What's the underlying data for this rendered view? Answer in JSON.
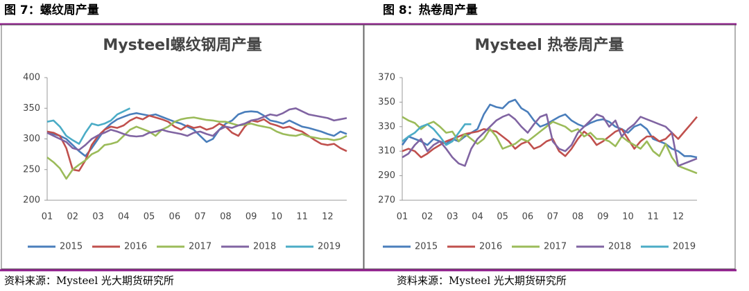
{
  "figures": [
    {
      "heading": "图 7：螺纹周产量",
      "source": "资料来源：Mysteel 光大期货研究所"
    },
    {
      "heading": "图 8：热卷周产量",
      "source": "资料来源：Mysteel 光大期货研究所"
    }
  ],
  "chart_data": [
    {
      "type": "line",
      "title": "Mysteel螺纹钢周产量",
      "categories": [
        "01",
        null,
        null,
        null,
        "02",
        null,
        null,
        null,
        "03",
        null,
        null,
        null,
        "04",
        null,
        null,
        null,
        "05",
        null,
        null,
        null,
        "06",
        null,
        null,
        null,
        "07",
        null,
        null,
        null,
        "08",
        null,
        null,
        null,
        "09",
        null,
        null,
        null,
        "10",
        null,
        null,
        null,
        "11",
        null,
        null,
        null,
        "12",
        null,
        null,
        null
      ],
      "ylim": [
        200,
        400
      ],
      "yticks": [
        200,
        250,
        300,
        350,
        400
      ],
      "series": [
        {
          "name": "2015",
          "color": "#4a7ebb",
          "values": [
            310,
            308,
            305,
            300,
            290,
            280,
            272,
            285,
            300,
            315,
            325,
            332,
            336,
            340,
            342,
            340,
            338,
            340,
            336,
            332,
            328,
            325,
            320,
            315,
            305,
            295,
            300,
            315,
            325,
            330,
            340,
            344,
            345,
            344,
            338,
            330,
            328,
            325,
            330,
            325,
            320,
            318,
            315,
            312,
            308,
            305,
            312,
            308
          ]
        },
        {
          "name": "2016",
          "color": "#c0504d",
          "values": [
            312,
            310,
            305,
            285,
            250,
            248,
            265,
            290,
            305,
            315,
            320,
            318,
            322,
            330,
            335,
            332,
            338,
            335,
            332,
            328,
            320,
            315,
            322,
            318,
            320,
            315,
            318,
            325,
            320,
            310,
            305,
            320,
            330,
            328,
            332,
            325,
            322,
            318,
            320,
            315,
            312,
            305,
            298,
            292,
            290,
            292,
            285,
            280
          ]
        },
        {
          "name": "2017",
          "color": "#9bbb59",
          "values": [
            270,
            262,
            252,
            235,
            250,
            258,
            265,
            275,
            280,
            290,
            292,
            295,
            305,
            315,
            320,
            316,
            312,
            305,
            315,
            320,
            328,
            332,
            334,
            335,
            333,
            331,
            330,
            328,
            328,
            325,
            322,
            323,
            325,
            322,
            320,
            318,
            312,
            308,
            306,
            305,
            308,
            304,
            302,
            300,
            300,
            298,
            300,
            305
          ]
        },
        {
          "name": "2018",
          "color": "#8064a2",
          "values": [
            310,
            305,
            300,
            295,
            285,
            282,
            290,
            300,
            306,
            310,
            315,
            312,
            308,
            305,
            304,
            305,
            310,
            312,
            315,
            312,
            310,
            308,
            305,
            310,
            312,
            308,
            305,
            315,
            320,
            318,
            322,
            325,
            330,
            332,
            336,
            340,
            338,
            342,
            348,
            350,
            345,
            340,
            338,
            336,
            334,
            330,
            332,
            334
          ]
        },
        {
          "name": "2019",
          "color": "#4bacc6",
          "values": [
            328,
            330,
            320,
            305,
            298,
            292,
            310,
            325,
            322,
            325,
            330,
            340,
            345,
            350,
            null,
            null,
            null,
            null,
            null,
            null,
            null,
            null,
            null,
            null,
            null,
            null,
            null,
            null,
            null,
            null,
            null,
            null,
            null,
            null,
            null,
            null,
            null,
            null,
            null,
            null,
            null,
            null,
            null,
            null,
            null,
            null,
            null,
            null
          ]
        }
      ]
    },
    {
      "type": "line",
      "title": "Mysteel 热卷周产量",
      "categories": [
        "01",
        null,
        null,
        null,
        "02",
        null,
        null,
        null,
        "03",
        null,
        null,
        null,
        "04",
        null,
        null,
        null,
        "05",
        null,
        null,
        null,
        "06",
        null,
        null,
        null,
        "07",
        null,
        null,
        null,
        "08",
        null,
        null,
        null,
        "09",
        null,
        null,
        null,
        "10",
        null,
        null,
        null,
        "11",
        null,
        null,
        null,
        "12",
        null,
        null,
        null
      ],
      "ylim": [
        270,
        370
      ],
      "yticks": [
        270,
        290,
        310,
        330,
        350,
        370
      ],
      "series": [
        {
          "name": "2015",
          "color": "#4a7ebb",
          "values": [
            315,
            322,
            320,
            318,
            315,
            320,
            318,
            316,
            320,
            318,
            322,
            325,
            328,
            340,
            348,
            346,
            345,
            350,
            352,
            345,
            342,
            335,
            330,
            332,
            335,
            338,
            340,
            335,
            332,
            330,
            333,
            335,
            336,
            334,
            330,
            328,
            325,
            330,
            332,
            328,
            320,
            318,
            316,
            312,
            310,
            306,
            306,
            305
          ]
        },
        {
          "name": "2016",
          "color": "#c0504d",
          "values": [
            310,
            312,
            310,
            305,
            308,
            312,
            315,
            318,
            320,
            322,
            324,
            325,
            326,
            328,
            327,
            326,
            322,
            318,
            312,
            316,
            318,
            312,
            314,
            318,
            320,
            310,
            306,
            312,
            320,
            326,
            322,
            315,
            318,
            322,
            326,
            328,
            320,
            312,
            318,
            322,
            322,
            318,
            320,
            325,
            320,
            326,
            332,
            338
          ]
        },
        {
          "name": "2017",
          "color": "#9bbb59",
          "values": [
            338,
            335,
            333,
            328,
            332,
            334,
            330,
            325,
            326,
            318,
            324,
            320,
            316,
            320,
            328,
            322,
            312,
            314,
            316,
            320,
            318,
            322,
            326,
            330,
            334,
            332,
            330,
            326,
            328,
            322,
            325,
            320,
            320,
            318,
            314,
            322,
            318,
            315,
            312,
            318,
            310,
            306,
            316,
            305,
            298,
            296,
            294,
            292
          ]
        },
        {
          "name": "2018",
          "color": "#8064a2",
          "values": [
            305,
            308,
            315,
            320,
            310,
            315,
            318,
            312,
            305,
            300,
            298,
            312,
            320,
            325,
            330,
            335,
            338,
            340,
            336,
            330,
            325,
            332,
            338,
            340,
            318,
            312,
            310,
            315,
            325,
            330,
            335,
            340,
            338,
            330,
            335,
            322,
            328,
            332,
            338,
            336,
            334,
            332,
            330,
            325,
            298,
            300,
            302,
            304
          ]
        },
        {
          "name": "2019",
          "color": "#4bacc6",
          "values": [
            318,
            322,
            325,
            330,
            332,
            328,
            322,
            315,
            318,
            325,
            332,
            332,
            null,
            null,
            null,
            null,
            null,
            null,
            null,
            null,
            null,
            null,
            null,
            null,
            null,
            null,
            null,
            null,
            null,
            null,
            null,
            null,
            null,
            null,
            null,
            null,
            null,
            null,
            null,
            null,
            null,
            null,
            null,
            null,
            null,
            null,
            null,
            null
          ]
        }
      ]
    }
  ]
}
